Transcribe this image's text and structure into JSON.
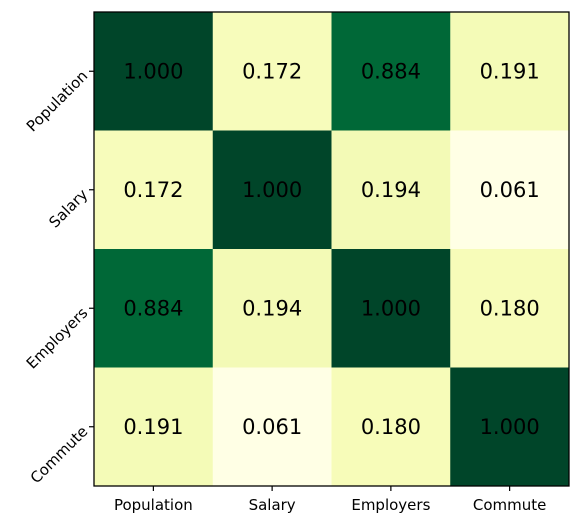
{
  "chart_data": {
    "type": "heatmap",
    "title": "",
    "xlabel": "",
    "ylabel": "",
    "x_categories": [
      "Population",
      "Salary",
      "Employers",
      "Commute"
    ],
    "y_categories": [
      "Population",
      "Salary",
      "Employers",
      "Commute"
    ],
    "values": [
      [
        1.0,
        0.172,
        0.884,
        0.191
      ],
      [
        0.172,
        1.0,
        0.194,
        0.061
      ],
      [
        0.884,
        0.194,
        1.0,
        0.18
      ],
      [
        0.191,
        0.061,
        0.18,
        1.0
      ]
    ],
    "value_labels": [
      [
        "1.000",
        "0.172",
        "0.884",
        "0.191"
      ],
      [
        "0.172",
        "1.000",
        "0.194",
        "0.061"
      ],
      [
        "0.884",
        "0.194",
        "1.000",
        "0.180"
      ],
      [
        "0.191",
        "0.061",
        "0.180",
        "1.000"
      ]
    ],
    "colormap": "YlGn",
    "color_range": [
      0.061,
      1.0
    ],
    "y_tick_rotation": "45 degrees",
    "colorbar": false,
    "grid": false
  }
}
